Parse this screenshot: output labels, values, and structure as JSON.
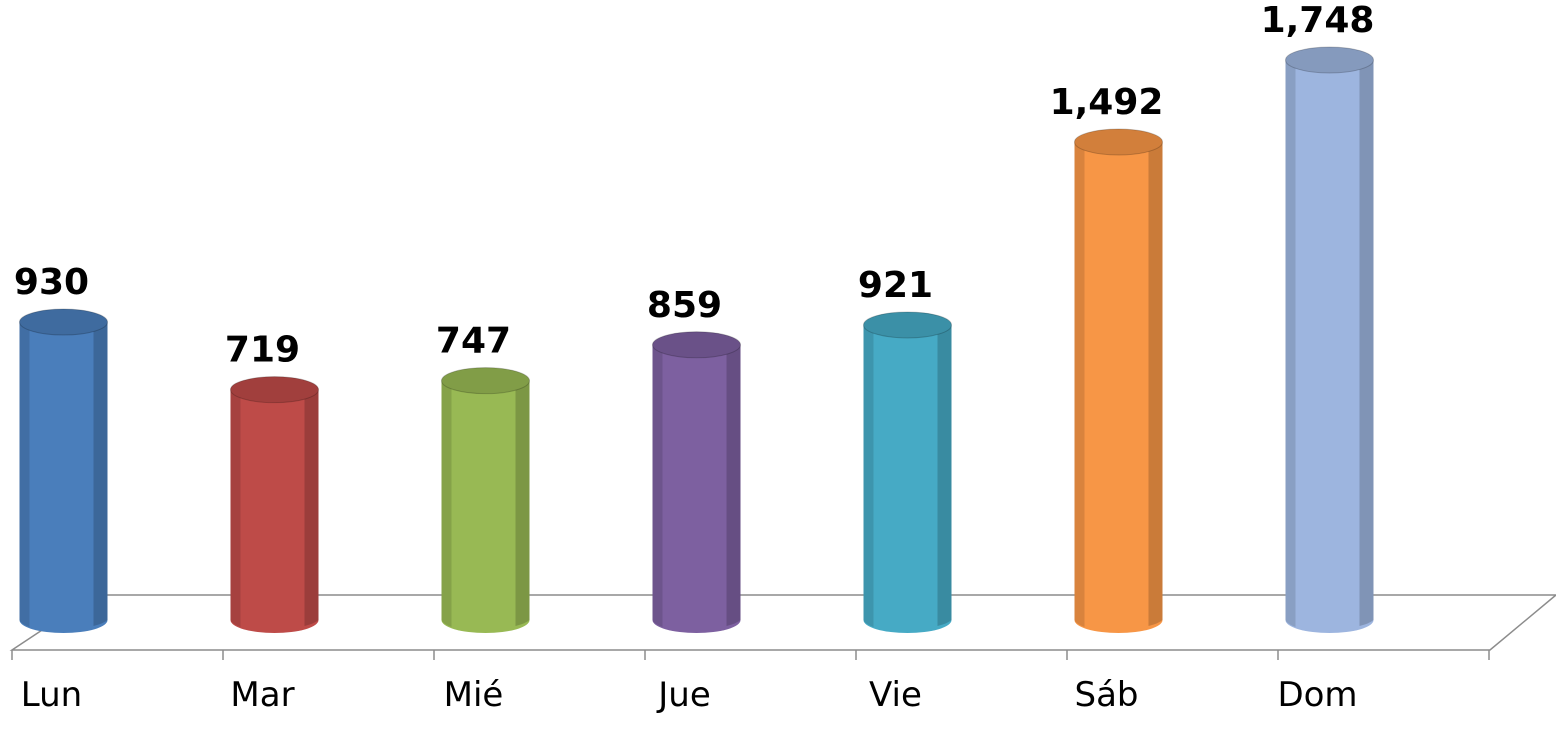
{
  "chart_data": {
    "type": "bar",
    "categories": [
      "Lun",
      "Mar",
      "Mié",
      "Jue",
      "Vie",
      "Sáb",
      "Dom"
    ],
    "values": [
      930,
      719,
      747,
      859,
      921,
      1492,
      1748
    ],
    "value_labels": [
      "930",
      "719",
      "747",
      "859",
      "921",
      "1,492",
      "1,748"
    ],
    "colors": [
      "#4a7ebb",
      "#be4b48",
      "#98b954",
      "#7d60a0",
      "#46aac5",
      "#f79646",
      "#9db5df"
    ]
  }
}
